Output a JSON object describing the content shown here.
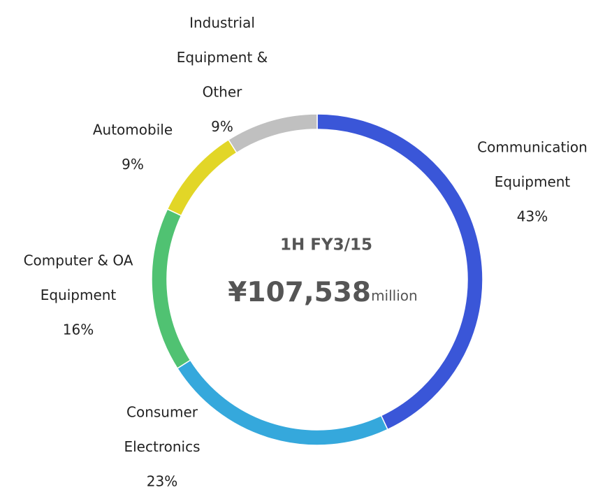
{
  "chart_data": {
    "type": "donut",
    "center_title": "1H FY3/15",
    "center_value": "¥107,538",
    "center_unit": "million",
    "categories": [
      [
        "Communication",
        "Equipment"
      ],
      [
        "Consumer",
        "Electronics"
      ],
      [
        "Computer & OA",
        "Equipment"
      ],
      [
        "Automobile"
      ],
      [
        "Industrial",
        "Equipment &",
        "Other"
      ]
    ],
    "values": [
      43,
      23,
      16,
      9,
      9
    ],
    "value_labels": [
      "43%",
      "23%",
      "16%",
      "9%",
      "9%"
    ],
    "colors": [
      "#3a56d8",
      "#35a8dc",
      "#50c272",
      "#e2d627",
      "#c0c0c0"
    ]
  }
}
